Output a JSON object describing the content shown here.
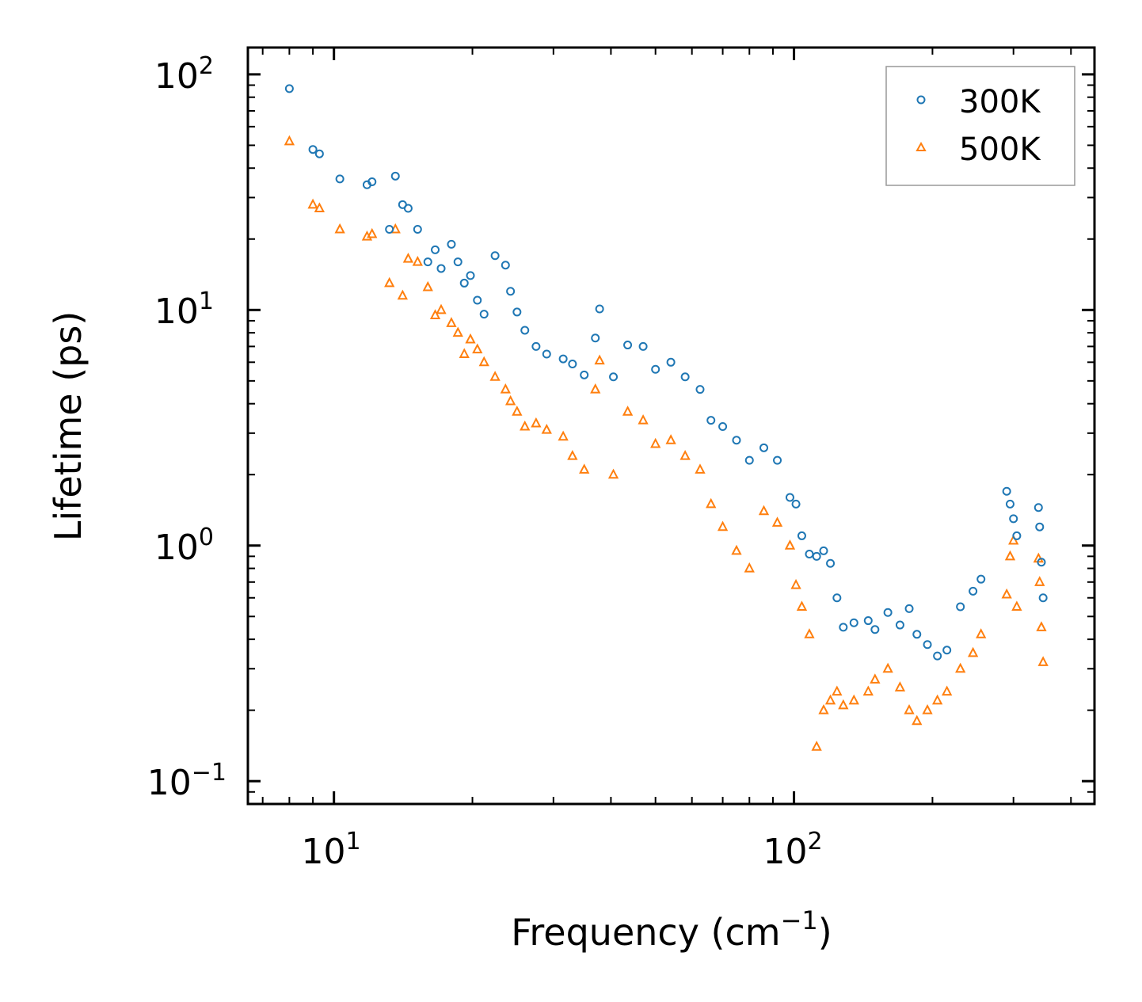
{
  "chart_data": {
    "type": "scatter",
    "xscale": "log",
    "yscale": "log",
    "xlabel": "Frequency (cm",
    "xlabel_sup": "−1",
    "xlabel_close": ")",
    "ylabel": "Lifetime (ps)",
    "xlim": [
      6.5,
      450
    ],
    "ylim": [
      0.08,
      130
    ],
    "xticks": [
      {
        "value": 10,
        "base": "10",
        "exp": "1"
      },
      {
        "value": 100,
        "base": "10",
        "exp": "2"
      }
    ],
    "yticks": [
      {
        "value": 0.1,
        "base": "10",
        "exp": "−1"
      },
      {
        "value": 1,
        "base": "10",
        "exp": "0"
      },
      {
        "value": 10,
        "base": "10",
        "exp": "1"
      },
      {
        "value": 100,
        "base": "10",
        "exp": "2"
      }
    ],
    "legend_position": "top-right",
    "series": [
      {
        "name": "300K",
        "marker": "circle",
        "color": "#1f77b4",
        "points": [
          [
            8.0,
            87
          ],
          [
            9.0,
            48
          ],
          [
            9.3,
            46
          ],
          [
            10.3,
            36
          ],
          [
            11.8,
            34
          ],
          [
            12.1,
            35
          ],
          [
            13.2,
            22
          ],
          [
            13.6,
            37
          ],
          [
            14.1,
            28
          ],
          [
            14.5,
            27
          ],
          [
            15.2,
            22
          ],
          [
            16.0,
            16
          ],
          [
            16.6,
            18
          ],
          [
            17.1,
            15
          ],
          [
            18.0,
            19
          ],
          [
            18.6,
            16
          ],
          [
            19.2,
            13
          ],
          [
            19.8,
            14
          ],
          [
            20.5,
            11
          ],
          [
            21.2,
            9.6
          ],
          [
            22.4,
            17
          ],
          [
            23.6,
            15.5
          ],
          [
            24.2,
            12
          ],
          [
            25.0,
            9.8
          ],
          [
            26.0,
            8.2
          ],
          [
            27.5,
            7.0
          ],
          [
            29.0,
            6.5
          ],
          [
            31.5,
            6.2
          ],
          [
            33.0,
            5.9
          ],
          [
            35.0,
            5.3
          ],
          [
            37.8,
            10.1
          ],
          [
            37.0,
            7.6
          ],
          [
            40.5,
            5.2
          ],
          [
            43.5,
            7.1
          ],
          [
            47.0,
            7.0
          ],
          [
            50.0,
            5.6
          ],
          [
            54.0,
            6.0
          ],
          [
            58.0,
            5.2
          ],
          [
            62.5,
            4.6
          ],
          [
            66.0,
            3.4
          ],
          [
            70.0,
            3.2
          ],
          [
            75.0,
            2.8
          ],
          [
            80.0,
            2.3
          ],
          [
            86.0,
            2.6
          ],
          [
            92.0,
            2.3
          ],
          [
            98.0,
            1.6
          ],
          [
            101.0,
            1.5
          ],
          [
            104.0,
            1.1
          ],
          [
            108.0,
            0.92
          ],
          [
            112.0,
            0.9
          ],
          [
            116.0,
            0.95
          ],
          [
            120.0,
            0.84
          ],
          [
            124.0,
            0.6
          ],
          [
            128.0,
            0.45
          ],
          [
            135.0,
            0.47
          ],
          [
            145.0,
            0.48
          ],
          [
            150.0,
            0.44
          ],
          [
            160.0,
            0.52
          ],
          [
            170.0,
            0.46
          ],
          [
            178.0,
            0.54
          ],
          [
            185.0,
            0.42
          ],
          [
            195.0,
            0.38
          ],
          [
            205.0,
            0.34
          ],
          [
            215.0,
            0.36
          ],
          [
            230.0,
            0.55
          ],
          [
            245.0,
            0.64
          ],
          [
            255.0,
            0.72
          ],
          [
            290.0,
            1.7
          ],
          [
            295.0,
            1.5
          ],
          [
            300.0,
            1.3
          ],
          [
            305.0,
            1.1
          ],
          [
            340.0,
            1.45
          ],
          [
            342.0,
            1.2
          ],
          [
            345.0,
            0.85
          ],
          [
            348.0,
            0.6
          ]
        ]
      },
      {
        "name": "500K",
        "marker": "triangle",
        "color": "#ff7f0e",
        "points": [
          [
            8.0,
            52
          ],
          [
            9.0,
            28
          ],
          [
            9.3,
            27
          ],
          [
            10.3,
            22
          ],
          [
            11.8,
            20.5
          ],
          [
            12.1,
            21
          ],
          [
            13.2,
            13
          ],
          [
            13.6,
            22
          ],
          [
            14.1,
            11.5
          ],
          [
            14.5,
            16.5
          ],
          [
            15.2,
            16
          ],
          [
            16.0,
            12.5
          ],
          [
            16.6,
            9.5
          ],
          [
            17.1,
            10
          ],
          [
            18.0,
            8.8
          ],
          [
            18.6,
            8.0
          ],
          [
            19.2,
            6.5
          ],
          [
            19.8,
            7.5
          ],
          [
            20.5,
            6.8
          ],
          [
            21.2,
            6.0
          ],
          [
            22.4,
            5.2
          ],
          [
            23.6,
            4.6
          ],
          [
            24.2,
            4.1
          ],
          [
            25.0,
            3.7
          ],
          [
            26.0,
            3.2
          ],
          [
            27.5,
            3.3
          ],
          [
            29.0,
            3.1
          ],
          [
            31.5,
            2.9
          ],
          [
            33.0,
            2.4
          ],
          [
            35.0,
            2.1
          ],
          [
            37.8,
            6.1
          ],
          [
            37.0,
            4.6
          ],
          [
            40.5,
            2.0
          ],
          [
            43.5,
            3.7
          ],
          [
            47.0,
            3.4
          ],
          [
            50.0,
            2.7
          ],
          [
            54.0,
            2.8
          ],
          [
            58.0,
            2.4
          ],
          [
            62.5,
            2.1
          ],
          [
            66.0,
            1.5
          ],
          [
            70.0,
            1.2
          ],
          [
            75.0,
            0.95
          ],
          [
            80.0,
            0.8
          ],
          [
            86.0,
            1.4
          ],
          [
            92.0,
            1.25
          ],
          [
            98.0,
            1.0
          ],
          [
            101.0,
            0.68
          ],
          [
            104.0,
            0.55
          ],
          [
            108.0,
            0.42
          ],
          [
            112.0,
            0.14
          ],
          [
            116.0,
            0.2
          ],
          [
            120.0,
            0.22
          ],
          [
            124.0,
            0.24
          ],
          [
            128.0,
            0.21
          ],
          [
            135.0,
            0.22
          ],
          [
            145.0,
            0.24
          ],
          [
            150.0,
            0.27
          ],
          [
            160.0,
            0.3
          ],
          [
            170.0,
            0.25
          ],
          [
            178.0,
            0.2
          ],
          [
            185.0,
            0.18
          ],
          [
            195.0,
            0.2
          ],
          [
            205.0,
            0.22
          ],
          [
            215.0,
            0.24
          ],
          [
            230.0,
            0.3
          ],
          [
            245.0,
            0.35
          ],
          [
            255.0,
            0.42
          ],
          [
            290.0,
            0.62
          ],
          [
            295.0,
            0.9
          ],
          [
            300.0,
            1.05
          ],
          [
            305.0,
            0.55
          ],
          [
            340.0,
            0.88
          ],
          [
            342.0,
            0.7
          ],
          [
            345.0,
            0.45
          ],
          [
            348.0,
            0.32
          ]
        ]
      }
    ]
  }
}
